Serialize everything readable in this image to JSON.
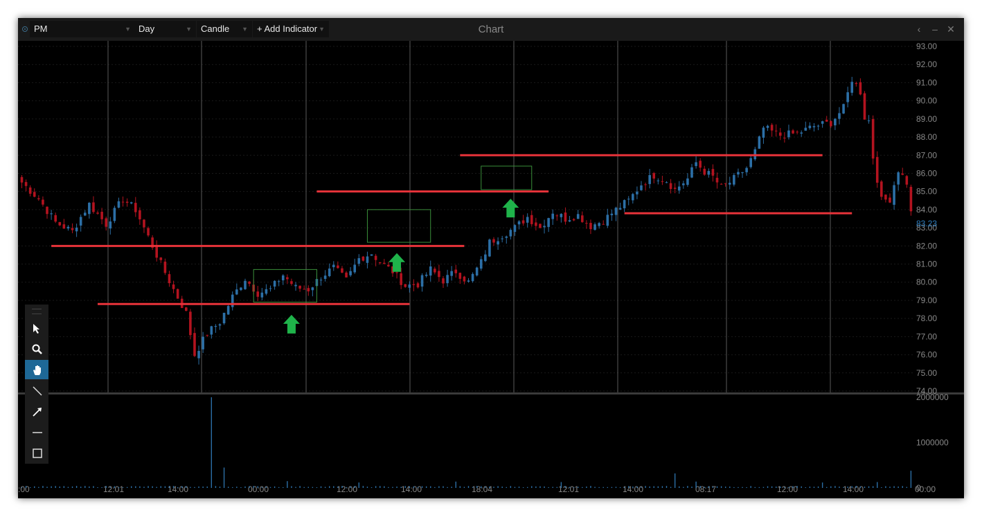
{
  "window": {
    "title": "Chart"
  },
  "header": {
    "symbol": "PM",
    "period": "Day",
    "style": "Candle",
    "add_indicator": "+ Add Indicator"
  },
  "toolbar": {
    "tools": [
      {
        "name": "select-tool",
        "icon": "cursor-icon"
      },
      {
        "name": "zoom-tool",
        "icon": "magnifier-icon"
      },
      {
        "name": "pan-tool",
        "icon": "hand-icon",
        "active": true
      },
      {
        "name": "line-tool",
        "icon": "line-icon"
      },
      {
        "name": "arrow-tool",
        "icon": "arrow-icon"
      },
      {
        "name": "horizontal-line-tool",
        "icon": "horizontal-line-icon"
      },
      {
        "name": "rectangle-tool",
        "icon": "rectangle-icon"
      }
    ]
  },
  "chart_data": {
    "type": "candlestick",
    "colors": {
      "up": "#2c6fa6",
      "down": "#b3131f",
      "annotation": "#e8333a",
      "arrow": "#1fb34a",
      "box": "#3b8f3b",
      "last_price": "#2f7fc0"
    },
    "price_axis": {
      "min": 74,
      "max": 93,
      "step": 1,
      "decimals": 2
    },
    "last_price": "83.23",
    "volume_axis": {
      "ticks": [
        "2000000",
        "1000000",
        "0"
      ],
      "max": 2000000
    },
    "time_labels": [
      ":00",
      "12:01",
      "14:00",
      "00:00",
      "12:00",
      "14:00",
      "18:04",
      "12:01",
      "14:00",
      "08:17",
      "12:00",
      "14:00",
      "00:00"
    ],
    "series": {
      "candle_count": 212,
      "anchors": [
        [
          0,
          85.5
        ],
        [
          4,
          84.6
        ],
        [
          8,
          83.3
        ],
        [
          12,
          82.8
        ],
        [
          14,
          83.6
        ],
        [
          16,
          84.3
        ],
        [
          20,
          83.2
        ],
        [
          24,
          84.6
        ],
        [
          27,
          84.0
        ],
        [
          30,
          82.5
        ],
        [
          33,
          81.0
        ],
        [
          36,
          79.6
        ],
        [
          39,
          78.3
        ],
        [
          41,
          76.0
        ],
        [
          44,
          77.2
        ],
        [
          47,
          77.8
        ],
        [
          50,
          79.2
        ],
        [
          53,
          80.2
        ],
        [
          56,
          79.4
        ],
        [
          59,
          79.6
        ],
        [
          62,
          80.4
        ],
        [
          65,
          79.7
        ],
        [
          68,
          79.6
        ],
        [
          71,
          80.3
        ],
        [
          74,
          80.8
        ],
        [
          77,
          80.1
        ],
        [
          80,
          81.3
        ],
        [
          83,
          81.6
        ],
        [
          85,
          81.1
        ],
        [
          88,
          80.6
        ],
        [
          91,
          79.8
        ],
        [
          94,
          79.9
        ],
        [
          97,
          80.7
        ],
        [
          100,
          80.1
        ],
        [
          103,
          80.6
        ],
        [
          106,
          80.0
        ],
        [
          109,
          81.1
        ],
        [
          111,
          82.2
        ],
        [
          114,
          82.6
        ],
        [
          117,
          83.0
        ],
        [
          120,
          83.6
        ],
        [
          123,
          83.0
        ],
        [
          126,
          83.9
        ],
        [
          129,
          83.5
        ],
        [
          132,
          83.7
        ],
        [
          135,
          83.1
        ],
        [
          138,
          83.4
        ],
        [
          141,
          84.0
        ],
        [
          144,
          84.5
        ],
        [
          147,
          85.4
        ],
        [
          150,
          85.9
        ],
        [
          153,
          85.6
        ],
        [
          155,
          85.1
        ],
        [
          158,
          85.7
        ],
        [
          160,
          86.6
        ],
        [
          162,
          86.1
        ],
        [
          164,
          85.8
        ],
        [
          166,
          85.2
        ],
        [
          168,
          85.5
        ],
        [
          170,
          85.9
        ],
        [
          172,
          86.3
        ],
        [
          174,
          87.2
        ],
        [
          176,
          88.5
        ],
        [
          180,
          88.1
        ],
        [
          184,
          88.2
        ],
        [
          188,
          88.6
        ],
        [
          192,
          88.8
        ],
        [
          195,
          89.6
        ],
        [
          197,
          91.2
        ],
        [
          199,
          90.5
        ],
        [
          200,
          89.1
        ],
        [
          201,
          88.9
        ],
        [
          202,
          86.9
        ],
        [
          204,
          84.5
        ],
        [
          206,
          84.6
        ],
        [
          208,
          86.2
        ],
        [
          210,
          85.5
        ],
        [
          211,
          83.8
        ]
      ],
      "seed": 7
    },
    "volume": {
      "baseline": 30000,
      "spikes": [
        [
          45,
          2000000
        ],
        [
          48,
          450000
        ],
        [
          63,
          150000
        ],
        [
          80,
          120000
        ],
        [
          103,
          140000
        ],
        [
          128,
          130000
        ],
        [
          155,
          320000
        ],
        [
          160,
          140000
        ],
        [
          190,
          120000
        ],
        [
          203,
          130000
        ],
        [
          211,
          380000
        ]
      ]
    },
    "support_resistance_lines": [
      {
        "x1": 7,
        "x2": 105,
        "price": 82.0
      },
      {
        "x1": 18,
        "x2": 92,
        "price": 78.8
      },
      {
        "x1": 70,
        "x2": 125,
        "price": 85.0
      },
      {
        "x1": 104,
        "x2": 190,
        "price": 87.0
      },
      {
        "x1": 143,
        "x2": 197,
        "price": 83.8
      }
    ],
    "consolidation_boxes": [
      {
        "x1": 55,
        "x2": 70,
        "price_top": 80.7,
        "price_bottom": 78.9
      },
      {
        "x1": 82,
        "x2": 97,
        "price_top": 84.0,
        "price_bottom": 82.2
      },
      {
        "x1": 109,
        "x2": 121,
        "price_top": 86.4,
        "price_bottom": 85.1
      }
    ],
    "up_arrows": [
      {
        "x": 64,
        "price": 78.2
      },
      {
        "x": 89,
        "price": 81.6
      },
      {
        "x": 116,
        "price": 84.6
      }
    ]
  }
}
